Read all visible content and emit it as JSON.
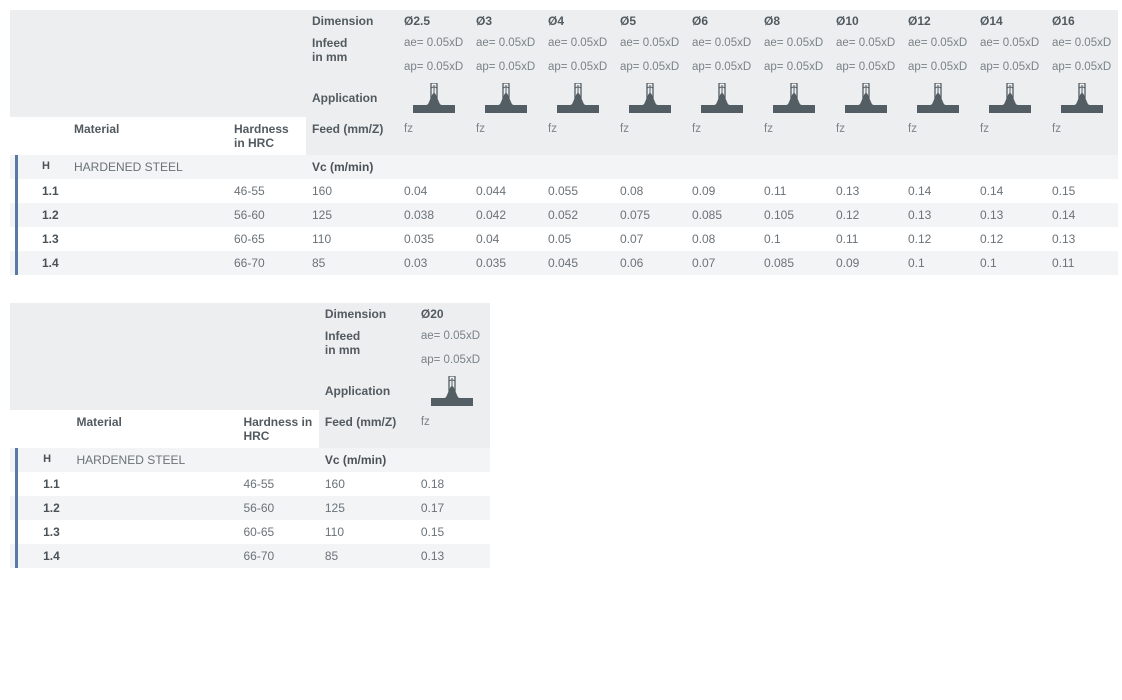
{
  "headers": {
    "dimension": "Dimension",
    "infeed_label": "Infeed",
    "infeed_unit": "in mm",
    "application": "Application",
    "material": "Material",
    "hardness": "Hardness in HRC",
    "feed": "Feed (mm/Z)",
    "vc": "Vc (m/min)",
    "fz": "fz",
    "ae": "ae= 0.05xD",
    "ap": "ap= 0.05xD"
  },
  "icon": {
    "base_fill": "#535e64",
    "tool_stroke": "#535e64"
  },
  "table1": {
    "diameters": [
      "Ø2.5",
      "Ø3",
      "Ø4",
      "Ø5",
      "Ø6",
      "Ø8",
      "Ø10",
      "Ø12",
      "Ø14",
      "Ø16"
    ],
    "section": {
      "code": "H",
      "name": "HARDENED STEEL"
    },
    "rows": [
      {
        "code": "1.1",
        "hardness": "46-55",
        "vc": "160",
        "fz": [
          "0.04",
          "0.044",
          "0.055",
          "0.08",
          "0.09",
          "0.11",
          "0.13",
          "0.14",
          "0.14",
          "0.15"
        ]
      },
      {
        "code": "1.2",
        "hardness": "56-60",
        "vc": "125",
        "fz": [
          "0.038",
          "0.042",
          "0.052",
          "0.075",
          "0.085",
          "0.105",
          "0.12",
          "0.13",
          "0.13",
          "0.14"
        ]
      },
      {
        "code": "1.3",
        "hardness": "60-65",
        "vc": "110",
        "fz": [
          "0.035",
          "0.04",
          "0.05",
          "0.07",
          "0.08",
          "0.1",
          "0.11",
          "0.12",
          "0.12",
          "0.13"
        ]
      },
      {
        "code": "1.4",
        "hardness": "66-70",
        "vc": "85",
        "fz": [
          "0.03",
          "0.035",
          "0.045",
          "0.06",
          "0.07",
          "0.085",
          "0.09",
          "0.1",
          "0.1",
          "0.11"
        ]
      }
    ]
  },
  "table2": {
    "diameters": [
      "Ø20"
    ],
    "section": {
      "code": "H",
      "name": "HARDENED STEEL"
    },
    "rows": [
      {
        "code": "1.1",
        "hardness": "46-55",
        "vc": "160",
        "fz": [
          "0.18"
        ]
      },
      {
        "code": "1.2",
        "hardness": "56-60",
        "vc": "125",
        "fz": [
          "0.17"
        ]
      },
      {
        "code": "1.3",
        "hardness": "60-65",
        "vc": "110",
        "fz": [
          "0.15"
        ]
      },
      {
        "code": "1.4",
        "hardness": "66-70",
        "vc": "85",
        "fz": [
          "0.13"
        ]
      }
    ]
  }
}
